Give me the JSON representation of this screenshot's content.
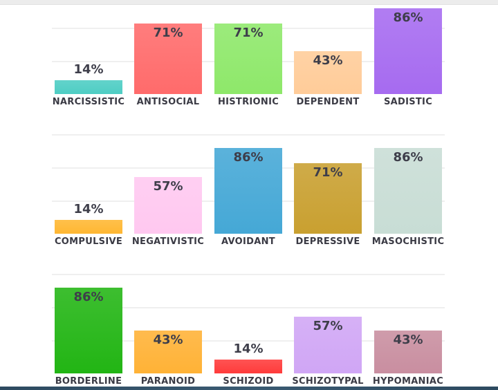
{
  "chart_data": [
    {
      "type": "bar",
      "categories": [
        "NARCISSISTIC",
        "ANTISOCIAL",
        "HISTRIONIC",
        "DEPENDENT",
        "SADISTIC"
      ],
      "values": [
        14,
        71,
        71,
        43,
        86
      ],
      "labels": [
        "14%",
        "71%",
        "71%",
        "43%",
        "86%"
      ],
      "colors": [
        "#4ecdc4",
        "#ff6b6b",
        "#8ee86a",
        "#ffcc99",
        "#a66bf0"
      ],
      "ylim": [
        0,
        100
      ],
      "grid": true
    },
    {
      "type": "bar",
      "categories": [
        "COMPULSIVE",
        "NEGATIVISTIC",
        "AVOIDANT",
        "DEPRESSIVE",
        "MASOCHISTIC"
      ],
      "values": [
        14,
        57,
        86,
        71,
        86
      ],
      "labels": [
        "14%",
        "57%",
        "86%",
        "71%",
        "86%"
      ],
      "colors": [
        "#ffb732",
        "#ffc8f0",
        "#45a8d6",
        "#c9a030",
        "#c8ddd5"
      ],
      "ylim": [
        0,
        100
      ],
      "grid": true
    },
    {
      "type": "bar",
      "categories": [
        "BORDERLINE",
        "PARANOID",
        "SCHIZOID",
        "SCHIZOTYPAL",
        "HYPOMANIAC"
      ],
      "values": [
        86,
        43,
        14,
        57,
        43
      ],
      "labels": [
        "86%",
        "43%",
        "14%",
        "57%",
        "43%"
      ],
      "colors": [
        "#22b514",
        "#ffb236",
        "#ff3b3b",
        "#d0a6f5",
        "#c98ea0"
      ],
      "ylim": [
        0,
        100
      ],
      "grid": true
    }
  ]
}
